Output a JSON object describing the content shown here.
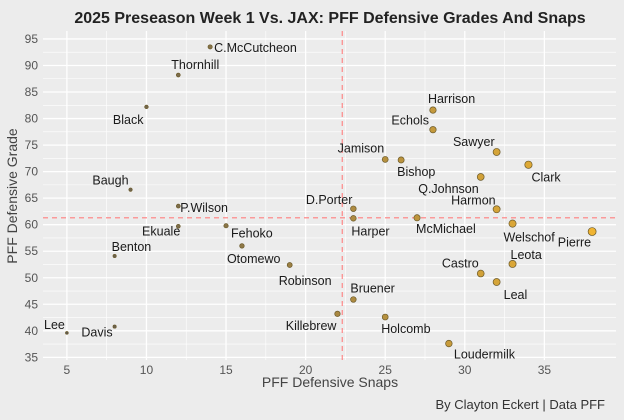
{
  "chart_data": {
    "type": "scatter",
    "title": "2025 Preseason Week 1 Vs. JAX: PFF Defensive Grades And Snaps",
    "xlabel": "PFF Defensive Snaps",
    "ylabel": "PFF Defensive Grade",
    "caption": "By Clayton Eckert | Data PFF",
    "xlim": [
      3.5,
      39.5
    ],
    "ylim": [
      34.5,
      96.5
    ],
    "xticks": [
      5,
      10,
      15,
      20,
      25,
      30,
      35
    ],
    "yticks": [
      35,
      40,
      45,
      50,
      55,
      60,
      65,
      70,
      75,
      80,
      85,
      90,
      95
    ],
    "grid": true,
    "reference_lines": {
      "vertical_x": 22.3,
      "horizontal_y": 61.3
    },
    "colors": {
      "point_fill_min": "#5e5a52",
      "point_fill_max": "#f0b432",
      "point_stroke": "#6b5a2a",
      "reference_line": "#ff7f7f",
      "grid": "#ffffff",
      "panel": "#ececec"
    },
    "points": [
      {
        "name": "C.McCutcheon",
        "x": 14,
        "y": 93.5
      },
      {
        "name": "Thornhill",
        "x": 12,
        "y": 88.2
      },
      {
        "name": "Black",
        "x": 10,
        "y": 82.2
      },
      {
        "name": "Baugh",
        "x": 9,
        "y": 66.6
      },
      {
        "name": "P.Wilson",
        "x": 12,
        "y": 63.5
      },
      {
        "name": "Ekuale",
        "x": 12,
        "y": 59.7
      },
      {
        "name": "Fehoko",
        "x": 15,
        "y": 59.8
      },
      {
        "name": "Benton",
        "x": 8,
        "y": 54.1
      },
      {
        "name": "Otomewo",
        "x": 16,
        "y": 56.0
      },
      {
        "name": "Robinson",
        "x": 19,
        "y": 52.4
      },
      {
        "name": "Lee",
        "x": 5,
        "y": 39.6
      },
      {
        "name": "Davis",
        "x": 8,
        "y": 40.8
      },
      {
        "name": "Killebrew",
        "x": 22,
        "y": 43.2
      },
      {
        "name": "Bruener",
        "x": 23,
        "y": 45.9
      },
      {
        "name": "Holcomb",
        "x": 25,
        "y": 42.6
      },
      {
        "name": "D.Porter",
        "x": 23,
        "y": 63.0
      },
      {
        "name": "Harper",
        "x": 23,
        "y": 61.2
      },
      {
        "name": "McMichael",
        "x": 27,
        "y": 61.3
      },
      {
        "name": "Jamison",
        "x": 25,
        "y": 72.3
      },
      {
        "name": "Bishop",
        "x": 26,
        "y": 72.2
      },
      {
        "name": "Harrison",
        "x": 28,
        "y": 81.6
      },
      {
        "name": "Echols",
        "x": 28,
        "y": 77.9
      },
      {
        "name": "Q.Johnson",
        "x": 31,
        "y": 69.0
      },
      {
        "name": "Sawyer",
        "x": 32,
        "y": 73.7
      },
      {
        "name": "Clark",
        "x": 34,
        "y": 71.3
      },
      {
        "name": "Harmon",
        "x": 32,
        "y": 62.9
      },
      {
        "name": "Welschof",
        "x": 33,
        "y": 60.2
      },
      {
        "name": "Pierre",
        "x": 38,
        "y": 58.7
      },
      {
        "name": "Leota",
        "x": 33,
        "y": 52.6
      },
      {
        "name": "Castro",
        "x": 31,
        "y": 50.8
      },
      {
        "name": "Leal",
        "x": 32,
        "y": 49.2
      },
      {
        "name": "Loudermilk",
        "x": 29,
        "y": 37.6
      }
    ]
  }
}
